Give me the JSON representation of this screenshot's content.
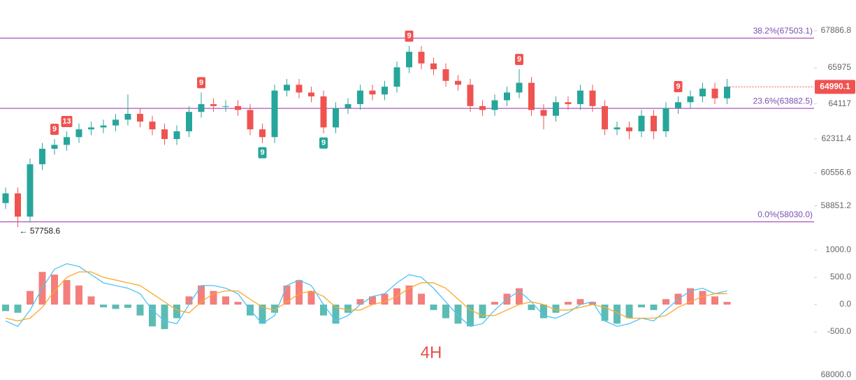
{
  "chart_data": [
    {
      "type": "candlestick",
      "open": [
        59000,
        59500,
        58300,
        61000,
        61800,
        62000,
        62400,
        62800,
        62900,
        63000,
        63300,
        63600,
        63200,
        62800,
        62300,
        62700,
        63700,
        64100,
        64000,
        64000,
        63800,
        62800,
        62400,
        64800,
        65100,
        64700,
        64500,
        62900,
        63900,
        64100,
        64800,
        64600,
        65000,
        66000,
        66800,
        66200,
        65900,
        65300,
        65100,
        64000,
        63800,
        64300,
        64700,
        65200,
        63800,
        63500,
        64200,
        64100,
        64800,
        64000,
        62800,
        62900,
        62700,
        63500,
        62700,
        63900,
        64200,
        64500,
        64900,
        64400
      ],
      "high": [
        59800,
        59800,
        61300,
        62100,
        62300,
        62700,
        63100,
        63200,
        63300,
        63600,
        64600,
        63900,
        63500,
        63100,
        63000,
        64000,
        64700,
        64400,
        64300,
        64300,
        64100,
        63100,
        65100,
        65400,
        65400,
        65000,
        64800,
        64200,
        64400,
        65100,
        65100,
        65300,
        66300,
        67100,
        67100,
        66500,
        66200,
        65600,
        65400,
        64300,
        64600,
        65000,
        65900,
        65500,
        64100,
        64500,
        64500,
        65100,
        65100,
        64300,
        63200,
        63200,
        63800,
        63800,
        64200,
        64500,
        64800,
        65200,
        65200,
        65400
      ],
      "low": [
        58700,
        57758.6,
        58000,
        60700,
        61500,
        61700,
        62100,
        62500,
        62600,
        62700,
        63000,
        62900,
        62500,
        62000,
        62000,
        62400,
        63400,
        63700,
        63700,
        63500,
        62500,
        62100,
        62100,
        64500,
        64400,
        64200,
        62600,
        62600,
        63600,
        63800,
        64300,
        64300,
        64700,
        65700,
        65900,
        65600,
        65000,
        64800,
        63700,
        63500,
        63500,
        64000,
        64400,
        63500,
        62800,
        63200,
        63800,
        63800,
        63700,
        62500,
        62500,
        62300,
        62400,
        62300,
        62400,
        63600,
        63900,
        64200,
        64100,
        64100
      ],
      "close": [
        59500,
        58300,
        61000,
        61800,
        62000,
        62400,
        62800,
        62900,
        63000,
        63300,
        63600,
        63200,
        62800,
        62300,
        62700,
        63700,
        64100,
        64000,
        64000,
        63800,
        62800,
        62400,
        64800,
        65100,
        64700,
        64500,
        62900,
        63900,
        64100,
        64800,
        64600,
        65000,
        66000,
        66800,
        66200,
        65900,
        65300,
        65100,
        64000,
        63800,
        64300,
        64700,
        65200,
        63800,
        63500,
        64200,
        64100,
        64800,
        64000,
        62800,
        62900,
        62700,
        63500,
        62700,
        63900,
        64200,
        64500,
        64900,
        64400,
        65000
      ],
      "up_color": "#26a69a",
      "down_color": "#ef5350",
      "ylim": [
        57584,
        69470
      ],
      "yticks": [
        67886.8,
        65975.0,
        64117.0,
        62311.4,
        60556.6,
        58851.2
      ],
      "fib_levels": [
        {
          "value": 67503.1,
          "label": "38.2%(67503.1)"
        },
        {
          "value": 63882.5,
          "label": "23.6%(63882.5)"
        },
        {
          "value": 58030.0,
          "label": "0.0%(58030.0)"
        }
      ],
      "fib_color": "#9c27b0",
      "last_price": {
        "value": 64990.1,
        "label": "64990.1"
      },
      "low_label": "← 57758.6",
      "markers": [
        {
          "label": "9",
          "color": "#ef5350"
        },
        {
          "label": "13",
          "color": "#ef5350"
        },
        {
          "label": "9",
          "color": "#ef5350"
        },
        {
          "label": "9",
          "color": "#26a69a"
        },
        {
          "label": "9",
          "color": "#26a69a"
        },
        {
          "label": "9",
          "color": "#ef5350"
        },
        {
          "label": "9",
          "color": "#ef5350"
        },
        {
          "label": "9",
          "color": "#ef5350"
        }
      ]
    },
    {
      "type": "macd",
      "histogram": [
        -120,
        -150,
        250,
        600,
        550,
        450,
        350,
        150,
        -50,
        -80,
        -60,
        -200,
        -400,
        -450,
        -250,
        150,
        350,
        250,
        150,
        50,
        -200,
        -350,
        -150,
        350,
        450,
        250,
        -200,
        -350,
        -150,
        100,
        150,
        200,
        300,
        350,
        200,
        -100,
        -250,
        -350,
        -400,
        -250,
        50,
        200,
        300,
        -100,
        -250,
        -150,
        50,
        100,
        50,
        -300,
        -350,
        -250,
        -50,
        -100,
        100,
        200,
        300,
        250,
        150,
        50
      ],
      "series": [
        {
          "color": "#4fc3f7",
          "values": [
            -300,
            -400,
            -100,
            300,
            650,
            750,
            700,
            550,
            400,
            350,
            300,
            200,
            -100,
            -300,
            -350,
            0,
            350,
            350,
            300,
            200,
            -100,
            -350,
            -200,
            350,
            450,
            350,
            0,
            -300,
            -200,
            0,
            150,
            200,
            400,
            550,
            500,
            300,
            50,
            -200,
            -400,
            -350,
            -100,
            100,
            250,
            50,
            -200,
            -250,
            -150,
            0,
            50,
            -300,
            -400,
            -350,
            -250,
            -300,
            -100,
            100,
            250,
            300,
            200,
            250
          ]
        },
        {
          "color": "#ffa726",
          "values": [
            -250,
            -300,
            -250,
            -50,
            250,
            500,
            600,
            600,
            500,
            450,
            400,
            350,
            200,
            50,
            -100,
            -150,
            50,
            200,
            250,
            250,
            100,
            -50,
            -100,
            50,
            200,
            250,
            150,
            -50,
            -100,
            -100,
            0,
            50,
            150,
            300,
            400,
            400,
            300,
            100,
            -100,
            -200,
            -200,
            -100,
            0,
            50,
            0,
            -100,
            -100,
            -50,
            0,
            -50,
            -150,
            -250,
            -250,
            -250,
            -200,
            -50,
            50,
            150,
            200,
            200
          ]
        }
      ],
      "pos_color": "#ef5350",
      "neg_color": "#26a69a",
      "ylim": [
        -820,
        1167
      ],
      "yticks": [
        {
          "value": 1000,
          "label": "1000.0"
        },
        {
          "value": 500,
          "label": "500.0"
        },
        {
          "value": 0,
          "label": "0.0"
        },
        {
          "value": -500,
          "label": "-500.0"
        }
      ],
      "timeframe": "4H",
      "bottom_label": "68000.0"
    }
  ]
}
